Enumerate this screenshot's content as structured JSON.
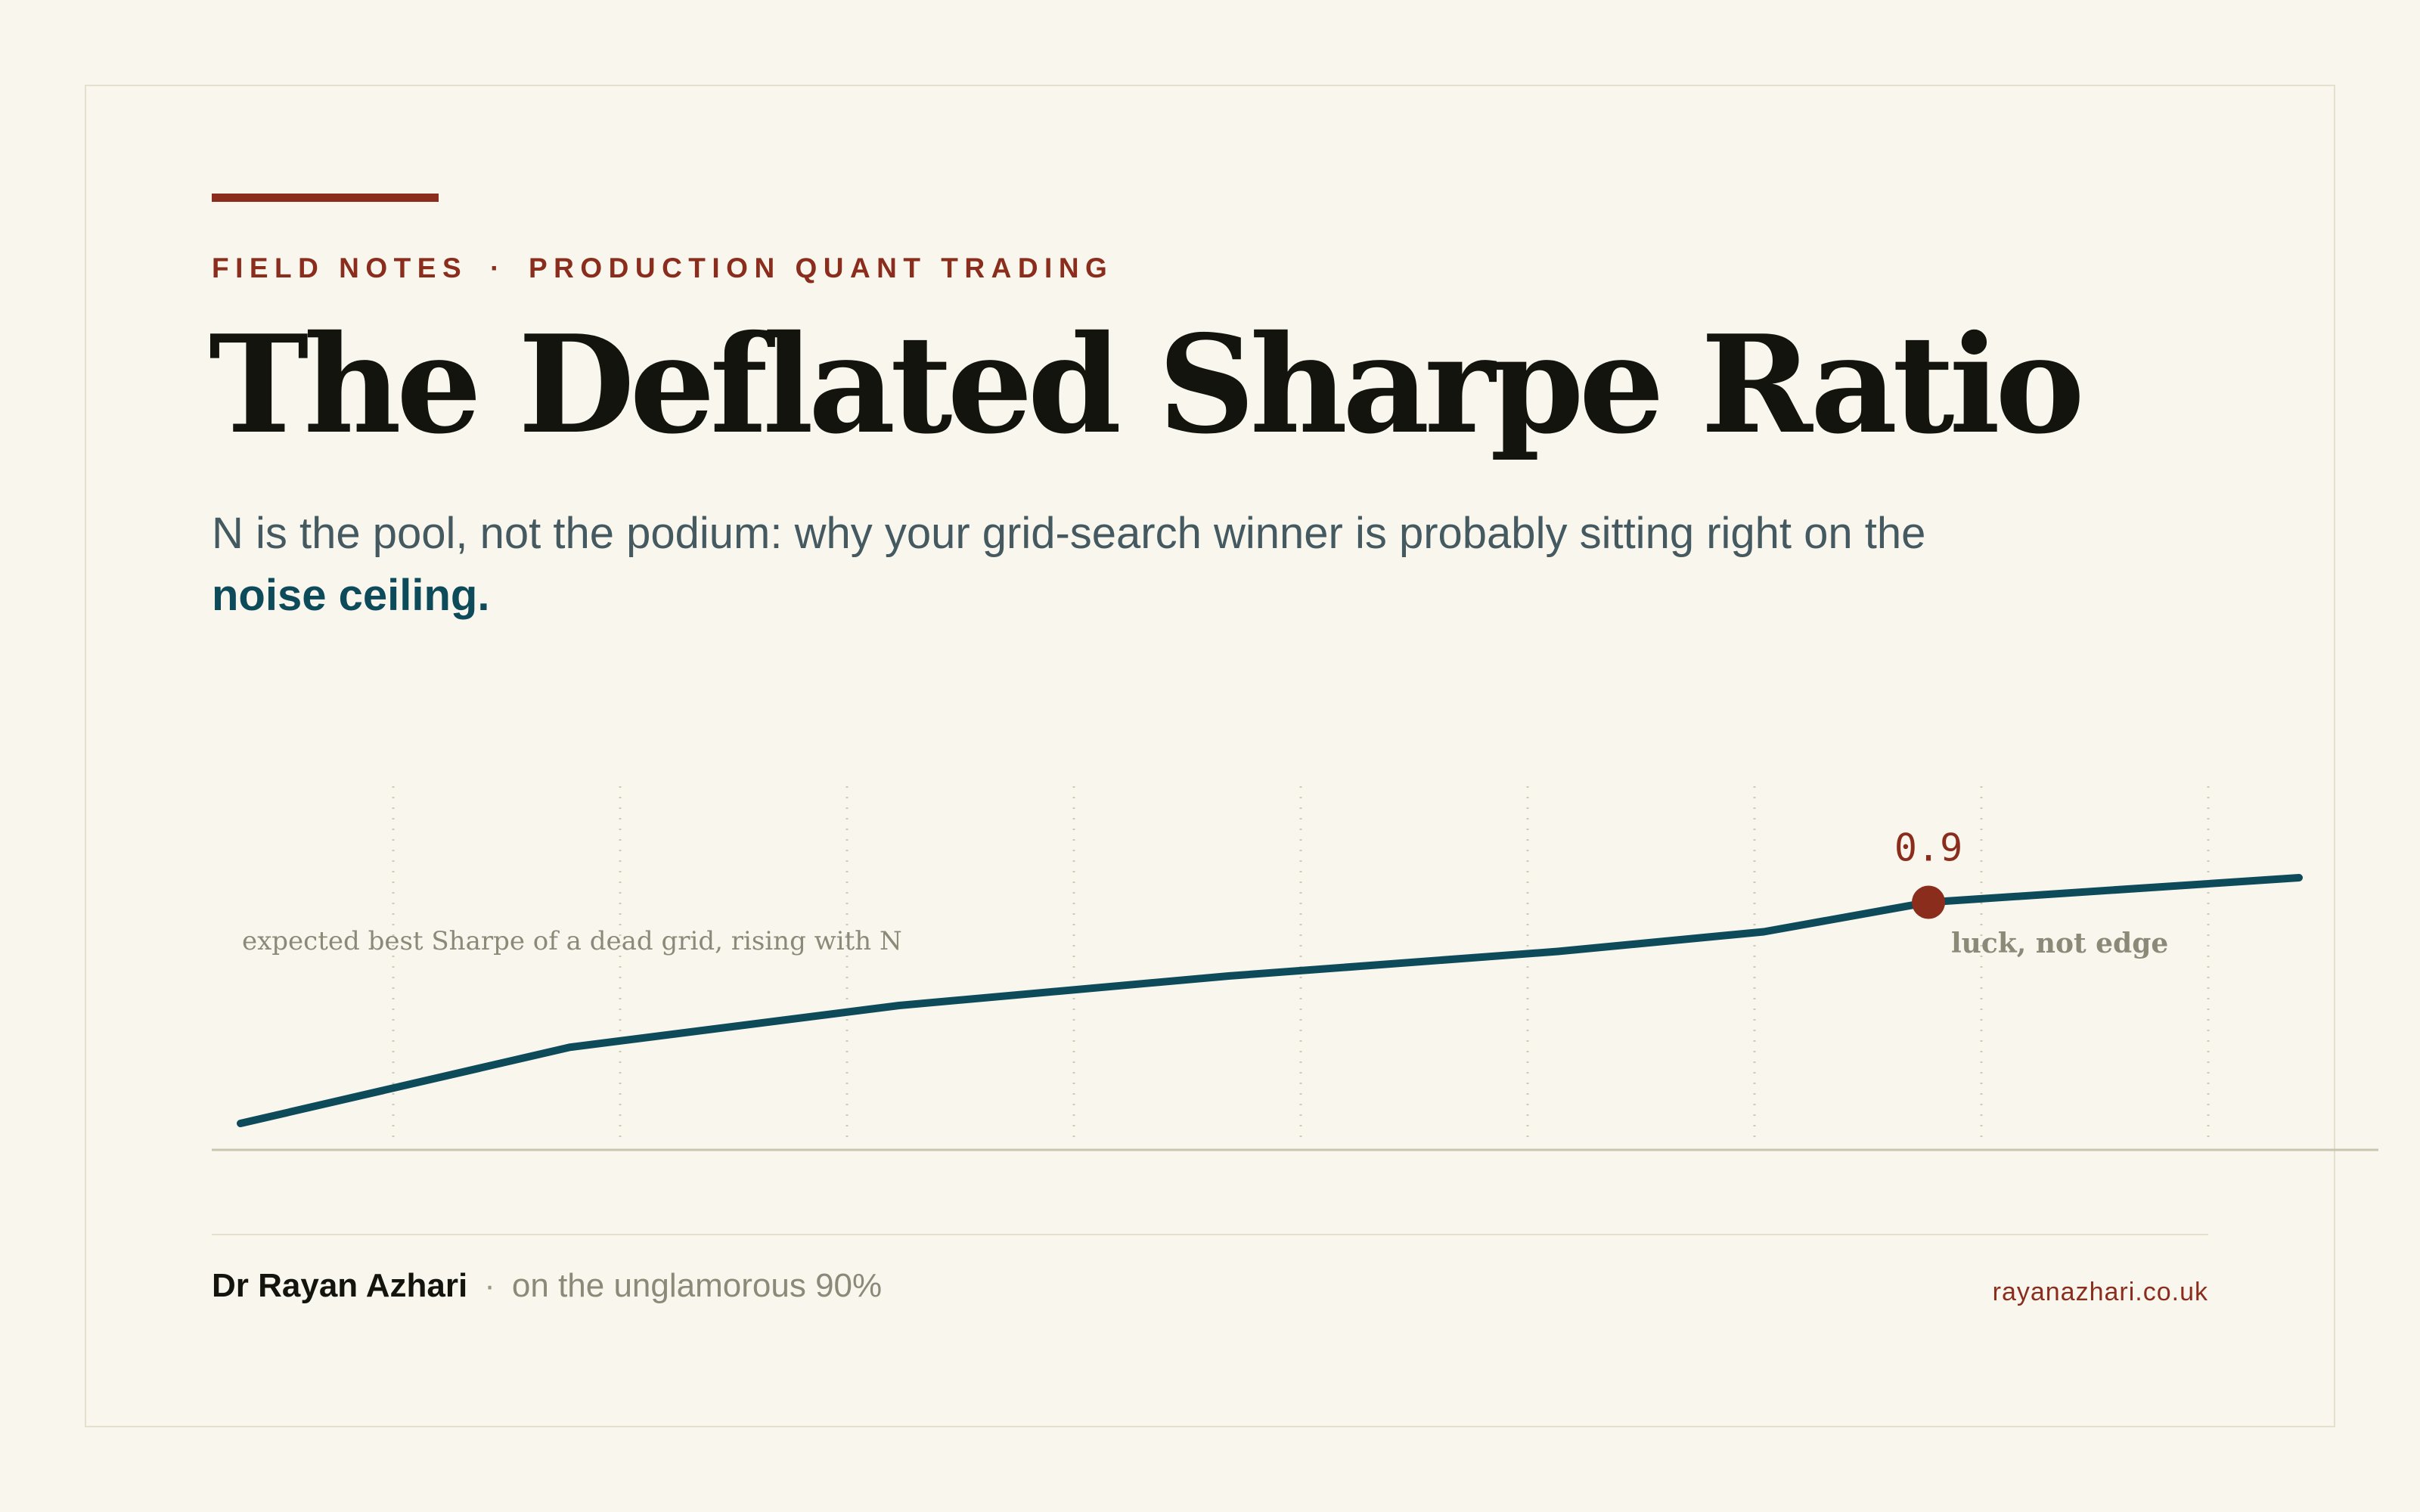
{
  "colors": {
    "background": "#f9f6ee",
    "accent": "#8a2d1d",
    "ink": "#14140f",
    "teal": "#0d4a5a",
    "muted": "#455a60",
    "annotation": "#8b8a78"
  },
  "kicker": {
    "left": "FIELD NOTES",
    "separator": "·",
    "right": "PRODUCTION QUANT TRADING"
  },
  "title": "The Deflated Sharpe Ratio",
  "subtitle": {
    "text": "N is the pool, not the podium: why your grid-search winner is probably sitting right on the ",
    "highlight": "noise ceiling."
  },
  "chart_data": {
    "type": "line",
    "series": [
      {
        "values": [
          0.0,
          0.31,
          0.48,
          0.6,
          0.7,
          0.78,
          0.9,
          1.0
        ]
      }
    ],
    "x_positions": [
      0.0,
      0.16,
      0.32,
      0.48,
      0.64,
      0.74,
      0.82,
      1.0
    ],
    "highlight_index": 6,
    "highlight_label": "0.9",
    "curve_caption": "expected best Sharpe of a dead grid, rising with N",
    "marker_caption": "luck, not edge",
    "grid": true,
    "gridline_count": 9
  },
  "footer": {
    "author": "Dr Rayan Azhari",
    "separator": "·",
    "tagline": "on the unglamorous 90%",
    "site": "rayanazhari.co.uk"
  }
}
